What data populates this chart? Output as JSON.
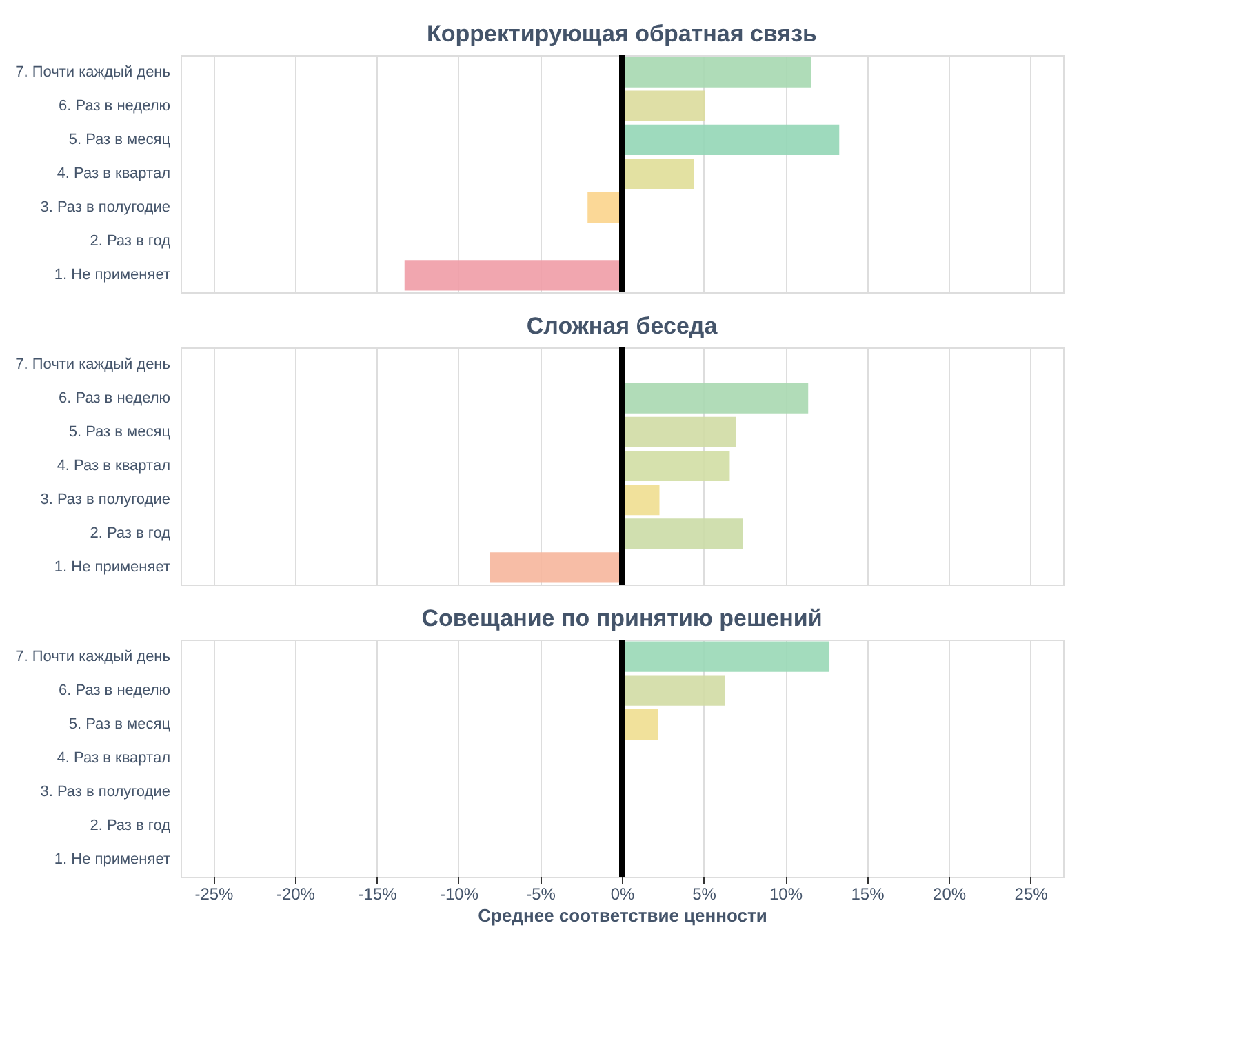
{
  "chart_data": [
    {
      "type": "bar",
      "orientation": "horizontal",
      "title": "Корректирующая обратная связь",
      "categories": [
        "7. Почти каждый день",
        "6. Раз в неделю",
        "5. Раз в месяц",
        "4. Раз в квартал",
        "3. Раз в полугодие",
        "2. Раз в год",
        "1. Не применяет"
      ],
      "values": [
        11.6,
        5.1,
        13.3,
        4.4,
        -2.1,
        null,
        -13.3
      ],
      "colors": [
        "#a6d8b0",
        "#dcdc9c",
        "#93d6b6",
        "#e0de98",
        "#fbd48c",
        null,
        "#ef9ca6"
      ],
      "xlim": [
        -27,
        27
      ],
      "xticks": [
        {
          "value": -25,
          "label": null
        },
        {
          "value": -20,
          "label": null
        },
        {
          "value": -15,
          "label": null
        },
        {
          "value": -10,
          "label": null
        },
        {
          "value": -5,
          "label": null
        },
        {
          "value": 0,
          "label": null
        },
        {
          "value": 5,
          "label": null
        },
        {
          "value": 10,
          "label": null
        },
        {
          "value": 15,
          "label": null
        },
        {
          "value": 20,
          "label": null
        },
        {
          "value": 25,
          "label": null
        }
      ],
      "ref_lines": [
        {
          "axis": "x",
          "value": 0,
          "color": "#000000"
        }
      ],
      "grid": "x",
      "tick_labels": "y"
    },
    {
      "type": "bar",
      "orientation": "horizontal",
      "title": "Сложная беседа",
      "categories": [
        "7. Почти каждый день",
        "6. Раз в неделю",
        "5. Раз в месяц",
        "4. Раз в квартал",
        "3. Раз в полугодие",
        "2. Раз в год",
        "1. Не применяет"
      ],
      "values": [
        null,
        11.4,
        7.0,
        6.6,
        2.3,
        7.4,
        -8.1
      ],
      "colors": [
        null,
        "#a8d8b0",
        "#d0dca4",
        "#d2dea4",
        "#efde90",
        "#cbdca6",
        "#f6b69c"
      ],
      "xlim": [
        -27,
        27
      ],
      "xticks": [
        {
          "value": -25,
          "label": null
        },
        {
          "value": -20,
          "label": null
        },
        {
          "value": -15,
          "label": null
        },
        {
          "value": -10,
          "label": null
        },
        {
          "value": -5,
          "label": null
        },
        {
          "value": 0,
          "label": null
        },
        {
          "value": 5,
          "label": null
        },
        {
          "value": 10,
          "label": null
        },
        {
          "value": 15,
          "label": null
        },
        {
          "value": 20,
          "label": null
        },
        {
          "value": 25,
          "label": null
        }
      ],
      "ref_lines": [
        {
          "axis": "x",
          "value": 0,
          "color": "#000000"
        }
      ],
      "grid": "x",
      "tick_labels": "y"
    },
    {
      "type": "bar",
      "orientation": "horizontal",
      "title": "Совещание по принятию решений",
      "xlabel": "Среднее соответствие ценности",
      "categories": [
        "7. Почти каждый день",
        "6. Раз в неделю",
        "5. Раз в месяц",
        "4. Раз в квартал",
        "3. Раз в полугодие",
        "2. Раз в год",
        "1. Не применяет"
      ],
      "values": [
        12.7,
        6.3,
        2.2,
        null,
        null,
        null,
        null
      ],
      "colors": [
        "#99d8b6",
        "#d2dca4",
        "#f0de90",
        null,
        null,
        null,
        null
      ],
      "xlim": [
        -27,
        27
      ],
      "xticks": [
        {
          "value": -25,
          "label": "-25%"
        },
        {
          "value": -20,
          "label": "-20%"
        },
        {
          "value": -15,
          "label": "-15%"
        },
        {
          "value": -10,
          "label": "-10%"
        },
        {
          "value": -5,
          "label": "-5%"
        },
        {
          "value": 0,
          "label": "0%"
        },
        {
          "value": 5,
          "label": "5%"
        },
        {
          "value": 10,
          "label": "10%"
        },
        {
          "value": 15,
          "label": "15%"
        },
        {
          "value": 20,
          "label": "20%"
        },
        {
          "value": 25,
          "label": "25%"
        }
      ],
      "ref_lines": [
        {
          "axis": "x",
          "value": 0,
          "color": "#000000"
        }
      ],
      "grid": "x"
    }
  ]
}
